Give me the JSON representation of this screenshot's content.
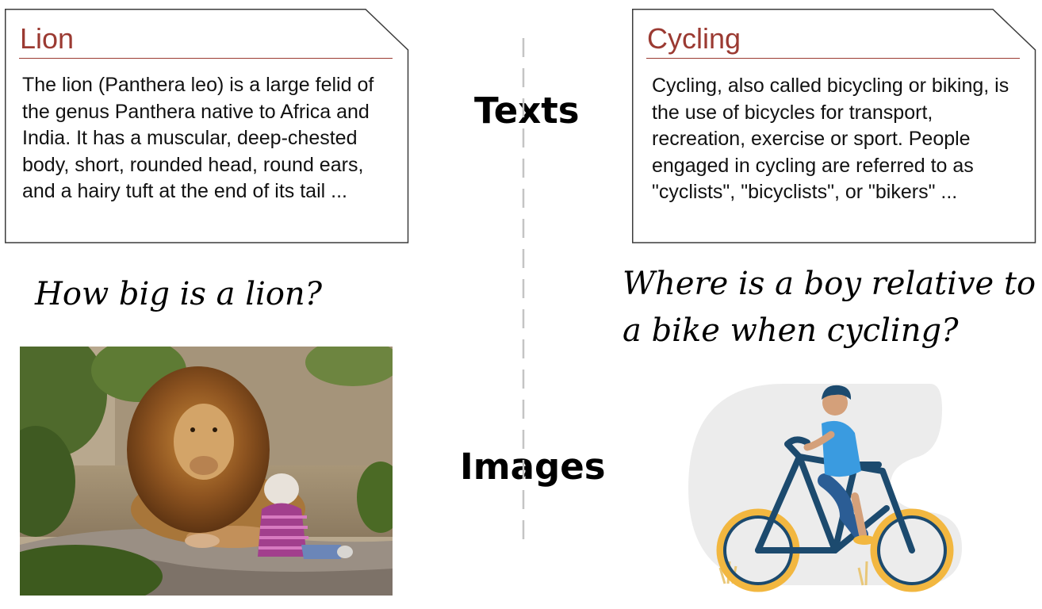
{
  "labels": {
    "texts": "Texts",
    "images": "Images"
  },
  "cards": [
    {
      "title": "Lion",
      "body": "The lion (Panthera leo) is a large felid of the genus Panthera native to Africa and India. It has a muscular, deep-chested body, short, rounded head, round ears, and a hairy tuft at the end of its tail ..."
    },
    {
      "title": "Cycling",
      "body": "Cycling, also called bicycling or biking, is the use of bicycles for transport, recreation, exercise or sport. People engaged in cycling are referred to as \"cyclists\", \"bicyclists\", or \"bikers\" ..."
    }
  ],
  "questions": {
    "lion": "How big is a lion?",
    "cycling": "Where is a boy relative to a bike when cycling?"
  },
  "colors": {
    "title_accent": "#9b3a32",
    "bike_frame": "#1c4a6e",
    "wheel_rim": "#f2b740",
    "shirt": "#3a9be0"
  },
  "images": [
    {
      "depicts": "lion-and-child-photo"
    },
    {
      "depicts": "boy-riding-bicycle-illustration"
    }
  ]
}
